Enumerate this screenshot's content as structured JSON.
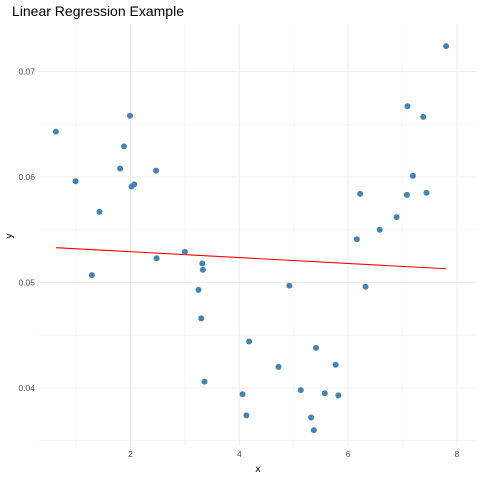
{
  "chart_data": {
    "type": "scatter",
    "title": "Linear Regression Example",
    "xlabel": "x",
    "ylabel": "y",
    "xlim": [
      0.3,
      8.35
    ],
    "ylim": [
      0.0345,
      0.0745
    ],
    "x_ticks": [
      2,
      4,
      6,
      8
    ],
    "y_ticks": [
      0.04,
      0.05,
      0.06,
      0.07
    ],
    "y_tick_labels": [
      "0.04",
      "0.05",
      "0.06",
      "0.07"
    ],
    "grid": true,
    "colors": {
      "points": "#4682b4",
      "fit_line": "#ff0000"
    },
    "series": [
      {
        "values": [
          [
            0.63,
            0.0643
          ],
          [
            0.99,
            0.0596
          ],
          [
            1.29,
            0.0507
          ],
          [
            1.43,
            0.0567
          ],
          [
            1.81,
            0.0608
          ],
          [
            1.88,
            0.0629
          ],
          [
            1.99,
            0.0658
          ],
          [
            2.02,
            0.0591
          ],
          [
            2.07,
            0.0593
          ],
          [
            2.47,
            0.0606
          ],
          [
            2.48,
            0.0523
          ],
          [
            3.0,
            0.0529
          ],
          [
            3.25,
            0.0493
          ],
          [
            3.3,
            0.0466
          ],
          [
            3.32,
            0.0518
          ],
          [
            3.33,
            0.0512
          ],
          [
            3.36,
            0.0406
          ],
          [
            4.06,
            0.0394
          ],
          [
            4.13,
            0.0374
          ],
          [
            4.18,
            0.0444
          ],
          [
            4.72,
            0.042
          ],
          [
            4.92,
            0.0497
          ],
          [
            5.13,
            0.0398
          ],
          [
            5.32,
            0.0372
          ],
          [
            5.37,
            0.036
          ],
          [
            5.41,
            0.0438
          ],
          [
            5.57,
            0.0395
          ],
          [
            5.77,
            0.0422
          ],
          [
            5.82,
            0.0393
          ],
          [
            6.16,
            0.0541
          ],
          [
            6.22,
            0.0584
          ],
          [
            6.32,
            0.0496
          ],
          [
            6.58,
            0.055
          ],
          [
            6.89,
            0.0562
          ],
          [
            7.08,
            0.0583
          ],
          [
            7.09,
            0.0667
          ],
          [
            7.19,
            0.0601
          ],
          [
            7.38,
            0.0657
          ],
          [
            7.44,
            0.0585
          ],
          [
            7.8,
            0.0724
          ]
        ]
      }
    ],
    "fit_line": {
      "x": [
        0.63,
        7.8
      ],
      "y": [
        0.0533,
        0.0513
      ]
    }
  }
}
